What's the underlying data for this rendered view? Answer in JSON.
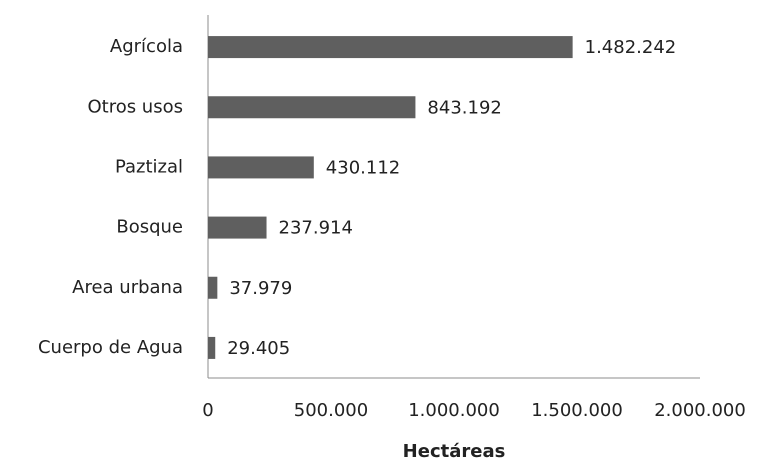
{
  "chart_data": {
    "type": "bar",
    "orientation": "horizontal",
    "categories": [
      "Agrícola",
      "Otros usos",
      "Paztizal",
      "Bosque",
      "Area urbana",
      "Cuerpo de Agua"
    ],
    "values": [
      1482242,
      843192,
      430112,
      237914,
      37979,
      29405
    ],
    "value_labels": [
      "1.482.242",
      "843.192",
      "430.112",
      "237.914",
      "37.979",
      "29.405"
    ],
    "color": "#5f5f5f",
    "xlabel": "Hectáreas",
    "xlim": [
      0,
      2000000
    ],
    "xticks": [
      0,
      {
        "value": 500000,
        "label": "500.000"
      },
      {
        "value": 1000000,
        "label": "1.000.000"
      },
      {
        "value": 1500000,
        "label": "1.500.000"
      },
      {
        "value": 2000000,
        "label": "2.000.000"
      }
    ],
    "grid": false
  }
}
